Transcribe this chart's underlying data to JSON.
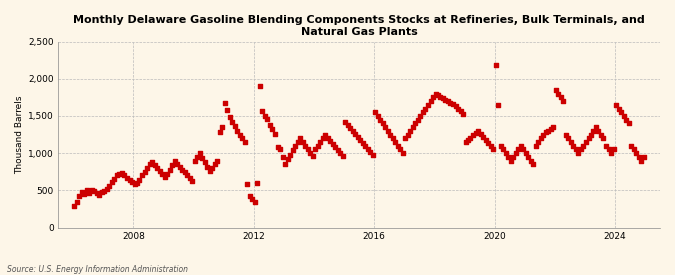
{
  "title": "Monthly Delaware Gasoline Blending Components Stocks at Refineries, Bulk Terminals, and\nNatural Gas Plants",
  "ylabel": "Thousand Barrels",
  "source": "Source: U.S. Energy Information Administration",
  "background_color": "#fdf6e8",
  "plot_bg_color": "#fdf6e8",
  "dot_color": "#cc0000",
  "ylim": [
    0,
    2500
  ],
  "yticks": [
    0,
    500,
    1000,
    1500,
    2000,
    2500
  ],
  "ytick_labels": [
    "0",
    "500",
    "1,000",
    "1,500",
    "2,000",
    "2,500"
  ],
  "xtick_years": [
    2008,
    2012,
    2016,
    2020,
    2024
  ],
  "data": [
    [
      2006,
      1,
      290
    ],
    [
      2006,
      2,
      340
    ],
    [
      2006,
      3,
      430
    ],
    [
      2006,
      4,
      480
    ],
    [
      2006,
      5,
      450
    ],
    [
      2006,
      6,
      500
    ],
    [
      2006,
      7,
      470
    ],
    [
      2006,
      8,
      510
    ],
    [
      2006,
      9,
      490
    ],
    [
      2006,
      10,
      460
    ],
    [
      2006,
      11,
      440
    ],
    [
      2006,
      12,
      480
    ],
    [
      2007,
      1,
      490
    ],
    [
      2007,
      2,
      520
    ],
    [
      2007,
      3,
      560
    ],
    [
      2007,
      4,
      610
    ],
    [
      2007,
      5,
      650
    ],
    [
      2007,
      6,
      700
    ],
    [
      2007,
      7,
      720
    ],
    [
      2007,
      8,
      740
    ],
    [
      2007,
      9,
      700
    ],
    [
      2007,
      10,
      670
    ],
    [
      2007,
      11,
      640
    ],
    [
      2007,
      12,
      610
    ],
    [
      2008,
      1,
      580
    ],
    [
      2008,
      2,
      600
    ],
    [
      2008,
      3,
      640
    ],
    [
      2008,
      4,
      700
    ],
    [
      2008,
      5,
      750
    ],
    [
      2008,
      6,
      800
    ],
    [
      2008,
      7,
      850
    ],
    [
      2008,
      8,
      880
    ],
    [
      2008,
      9,
      840
    ],
    [
      2008,
      10,
      800
    ],
    [
      2008,
      11,
      760
    ],
    [
      2008,
      12,
      720
    ],
    [
      2009,
      1,
      680
    ],
    [
      2009,
      2,
      720
    ],
    [
      2009,
      3,
      780
    ],
    [
      2009,
      4,
      840
    ],
    [
      2009,
      5,
      890
    ],
    [
      2009,
      6,
      860
    ],
    [
      2009,
      7,
      820
    ],
    [
      2009,
      8,
      780
    ],
    [
      2009,
      9,
      750
    ],
    [
      2009,
      10,
      700
    ],
    [
      2009,
      11,
      660
    ],
    [
      2009,
      12,
      630
    ],
    [
      2010,
      1,
      900
    ],
    [
      2010,
      2,
      950
    ],
    [
      2010,
      3,
      1000
    ],
    [
      2010,
      4,
      940
    ],
    [
      2010,
      5,
      880
    ],
    [
      2010,
      6,
      820
    ],
    [
      2010,
      7,
      760
    ],
    [
      2010,
      8,
      800
    ],
    [
      2010,
      9,
      850
    ],
    [
      2010,
      10,
      900
    ],
    [
      2010,
      11,
      1280
    ],
    [
      2010,
      12,
      1350
    ],
    [
      2011,
      1,
      1680
    ],
    [
      2011,
      2,
      1580
    ],
    [
      2011,
      3,
      1480
    ],
    [
      2011,
      4,
      1420
    ],
    [
      2011,
      5,
      1360
    ],
    [
      2011,
      6,
      1300
    ],
    [
      2011,
      7,
      1250
    ],
    [
      2011,
      8,
      1200
    ],
    [
      2011,
      9,
      1150
    ],
    [
      2011,
      10,
      580
    ],
    [
      2011,
      11,
      430
    ],
    [
      2011,
      12,
      380
    ],
    [
      2012,
      1,
      350
    ],
    [
      2012,
      2,
      600
    ],
    [
      2012,
      3,
      1900
    ],
    [
      2012,
      4,
      1560
    ],
    [
      2012,
      5,
      1500
    ],
    [
      2012,
      6,
      1460
    ],
    [
      2012,
      7,
      1380
    ],
    [
      2012,
      8,
      1320
    ],
    [
      2012,
      9,
      1260
    ],
    [
      2012,
      10,
      1080
    ],
    [
      2012,
      11,
      1050
    ],
    [
      2012,
      12,
      950
    ],
    [
      2013,
      1,
      860
    ],
    [
      2013,
      2,
      920
    ],
    [
      2013,
      3,
      980
    ],
    [
      2013,
      4,
      1040
    ],
    [
      2013,
      5,
      1100
    ],
    [
      2013,
      6,
      1150
    ],
    [
      2013,
      7,
      1200
    ],
    [
      2013,
      8,
      1150
    ],
    [
      2013,
      9,
      1100
    ],
    [
      2013,
      10,
      1050
    ],
    [
      2013,
      11,
      1000
    ],
    [
      2013,
      12,
      960
    ],
    [
      2014,
      1,
      1050
    ],
    [
      2014,
      2,
      1100
    ],
    [
      2014,
      3,
      1150
    ],
    [
      2014,
      4,
      1200
    ],
    [
      2014,
      5,
      1250
    ],
    [
      2014,
      6,
      1200
    ],
    [
      2014,
      7,
      1160
    ],
    [
      2014,
      8,
      1120
    ],
    [
      2014,
      9,
      1080
    ],
    [
      2014,
      10,
      1040
    ],
    [
      2014,
      11,
      1000
    ],
    [
      2014,
      12,
      960
    ],
    [
      2015,
      1,
      1420
    ],
    [
      2015,
      2,
      1380
    ],
    [
      2015,
      3,
      1340
    ],
    [
      2015,
      4,
      1300
    ],
    [
      2015,
      5,
      1260
    ],
    [
      2015,
      6,
      1220
    ],
    [
      2015,
      7,
      1180
    ],
    [
      2015,
      8,
      1140
    ],
    [
      2015,
      9,
      1100
    ],
    [
      2015,
      10,
      1060
    ],
    [
      2015,
      11,
      1020
    ],
    [
      2015,
      12,
      980
    ],
    [
      2016,
      1,
      1550
    ],
    [
      2016,
      2,
      1500
    ],
    [
      2016,
      3,
      1450
    ],
    [
      2016,
      4,
      1400
    ],
    [
      2016,
      5,
      1350
    ],
    [
      2016,
      6,
      1300
    ],
    [
      2016,
      7,
      1250
    ],
    [
      2016,
      8,
      1200
    ],
    [
      2016,
      9,
      1150
    ],
    [
      2016,
      10,
      1100
    ],
    [
      2016,
      11,
      1050
    ],
    [
      2016,
      12,
      1000
    ],
    [
      2017,
      1,
      1200
    ],
    [
      2017,
      2,
      1250
    ],
    [
      2017,
      3,
      1300
    ],
    [
      2017,
      4,
      1350
    ],
    [
      2017,
      5,
      1400
    ],
    [
      2017,
      6,
      1450
    ],
    [
      2017,
      7,
      1500
    ],
    [
      2017,
      8,
      1550
    ],
    [
      2017,
      9,
      1600
    ],
    [
      2017,
      10,
      1650
    ],
    [
      2017,
      11,
      1700
    ],
    [
      2017,
      12,
      1750
    ],
    [
      2018,
      1,
      1800
    ],
    [
      2018,
      2,
      1780
    ],
    [
      2018,
      3,
      1760
    ],
    [
      2018,
      4,
      1740
    ],
    [
      2018,
      5,
      1720
    ],
    [
      2018,
      6,
      1700
    ],
    [
      2018,
      7,
      1680
    ],
    [
      2018,
      8,
      1660
    ],
    [
      2018,
      9,
      1640
    ],
    [
      2018,
      10,
      1600
    ],
    [
      2018,
      11,
      1560
    ],
    [
      2018,
      12,
      1520
    ],
    [
      2019,
      1,
      1150
    ],
    [
      2019,
      2,
      1180
    ],
    [
      2019,
      3,
      1210
    ],
    [
      2019,
      4,
      1240
    ],
    [
      2019,
      5,
      1270
    ],
    [
      2019,
      6,
      1300
    ],
    [
      2019,
      7,
      1260
    ],
    [
      2019,
      8,
      1220
    ],
    [
      2019,
      9,
      1180
    ],
    [
      2019,
      10,
      1140
    ],
    [
      2019,
      11,
      1100
    ],
    [
      2019,
      12,
      1060
    ],
    [
      2020,
      1,
      2180
    ],
    [
      2020,
      2,
      1650
    ],
    [
      2020,
      3,
      1100
    ],
    [
      2020,
      4,
      1050
    ],
    [
      2020,
      5,
      1000
    ],
    [
      2020,
      6,
      950
    ],
    [
      2020,
      7,
      900
    ],
    [
      2020,
      8,
      950
    ],
    [
      2020,
      9,
      1000
    ],
    [
      2020,
      10,
      1050
    ],
    [
      2020,
      11,
      1100
    ],
    [
      2020,
      12,
      1050
    ],
    [
      2021,
      1,
      1000
    ],
    [
      2021,
      2,
      950
    ],
    [
      2021,
      3,
      900
    ],
    [
      2021,
      4,
      850
    ],
    [
      2021,
      5,
      1100
    ],
    [
      2021,
      6,
      1150
    ],
    [
      2021,
      7,
      1200
    ],
    [
      2021,
      8,
      1250
    ],
    [
      2021,
      9,
      1280
    ],
    [
      2021,
      10,
      1300
    ],
    [
      2021,
      11,
      1320
    ],
    [
      2021,
      12,
      1350
    ],
    [
      2022,
      1,
      1850
    ],
    [
      2022,
      2,
      1800
    ],
    [
      2022,
      3,
      1750
    ],
    [
      2022,
      4,
      1700
    ],
    [
      2022,
      5,
      1250
    ],
    [
      2022,
      6,
      1200
    ],
    [
      2022,
      7,
      1150
    ],
    [
      2022,
      8,
      1100
    ],
    [
      2022,
      9,
      1050
    ],
    [
      2022,
      10,
      1000
    ],
    [
      2022,
      11,
      1050
    ],
    [
      2022,
      12,
      1100
    ],
    [
      2023,
      1,
      1150
    ],
    [
      2023,
      2,
      1200
    ],
    [
      2023,
      3,
      1250
    ],
    [
      2023,
      4,
      1300
    ],
    [
      2023,
      5,
      1350
    ],
    [
      2023,
      6,
      1300
    ],
    [
      2023,
      7,
      1250
    ],
    [
      2023,
      8,
      1200
    ],
    [
      2023,
      9,
      1100
    ],
    [
      2023,
      10,
      1050
    ],
    [
      2023,
      11,
      1000
    ],
    [
      2023,
      12,
      1050
    ],
    [
      2024,
      1,
      1650
    ],
    [
      2024,
      2,
      1600
    ],
    [
      2024,
      3,
      1550
    ],
    [
      2024,
      4,
      1500
    ],
    [
      2024,
      5,
      1450
    ],
    [
      2024,
      6,
      1400
    ],
    [
      2024,
      7,
      1100
    ],
    [
      2024,
      8,
      1050
    ],
    [
      2024,
      9,
      1000
    ],
    [
      2024,
      10,
      950
    ],
    [
      2024,
      11,
      900
    ],
    [
      2024,
      12,
      950
    ]
  ]
}
